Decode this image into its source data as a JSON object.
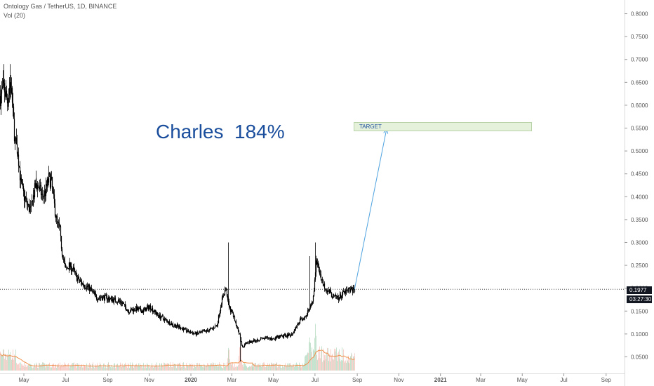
{
  "header": {
    "title": "Ontology Gas / TetherUS, 1D, BINANCE",
    "volume_label": "Vol (20)"
  },
  "annotation": {
    "text": "Charles  184%"
  },
  "target": {
    "label": "TARGET",
    "price_low": 0.543,
    "price_high": 0.563,
    "start_date": "2020-08-27",
    "end_date": "2021-05-15"
  },
  "projection_arrow": {
    "from": {
      "date": "2020-08-28",
      "price": 0.1977
    },
    "to": {
      "date": "2020-10-14",
      "price": 0.548
    }
  },
  "last_price": {
    "value": "0.1977",
    "countdown": "03:27:30"
  },
  "colors": {
    "annotation": "#1a4e9c",
    "candle": "#000000",
    "arrow": "#4fa3e0",
    "target_fill": "#e6f1dc",
    "target_border": "#b9d3a8",
    "volume_up": "#a8d5b5",
    "volume_down": "#f2b8b0",
    "volume_ma": "#f0904a",
    "axis_text": "#555555",
    "tag_bg": "#131722"
  },
  "chart_data": {
    "type": "candlestick",
    "x_axis": {
      "ticks": [
        "May",
        "Jul",
        "Sep",
        "Nov",
        "2020",
        "Mar",
        "May",
        "Jul",
        "Sep",
        "Nov",
        "2021",
        "Mar",
        "May",
        "Jul",
        "Sep"
      ],
      "tick_dates": [
        "2019-05-01",
        "2019-07-01",
        "2019-09-01",
        "2019-11-01",
        "2020-01-01",
        "2020-03-01",
        "2020-05-01",
        "2020-07-01",
        "2020-09-01",
        "2020-11-01",
        "2021-01-01",
        "2021-03-01",
        "2021-05-01",
        "2021-07-01",
        "2021-09-01"
      ],
      "bold_ticks": [
        "2020",
        "2021"
      ],
      "range": [
        "2019-03-27",
        "2021-09-28"
      ]
    },
    "y_axis": {
      "ticks": [
        0.05,
        0.1,
        0.15,
        0.2,
        0.25,
        0.3,
        0.35,
        0.4,
        0.45,
        0.5,
        0.55,
        0.6,
        0.65,
        0.7,
        0.75,
        0.8
      ],
      "tick_labels": [
        "0.0500",
        "0.1000",
        "0.1500",
        "0.2000",
        "0.2500",
        "0.3000",
        "0.3500",
        "0.4000",
        "0.4500",
        "0.5000",
        "0.5500",
        "0.6000",
        "0.6500",
        "0.7000",
        "0.7500",
        "0.8000"
      ],
      "range": [
        0.02,
        0.83
      ],
      "position": "right"
    },
    "grid": false,
    "series": [
      {
        "kind": "ohlc-daily-approx",
        "start_date": "2019-03-27",
        "end_date": "2020-08-28",
        "close_path": [
          [
            "2019-03-27",
            0.62
          ],
          [
            "2019-04-01",
            0.64
          ],
          [
            "2019-04-06",
            0.61
          ],
          [
            "2019-04-10",
            0.65
          ],
          [
            "2019-04-14",
            0.6
          ],
          [
            "2019-04-18",
            0.52
          ],
          [
            "2019-04-22",
            0.5
          ],
          [
            "2019-04-26",
            0.43
          ],
          [
            "2019-05-01",
            0.4
          ],
          [
            "2019-05-06",
            0.38
          ],
          [
            "2019-05-10",
            0.37
          ],
          [
            "2019-05-14",
            0.4
          ],
          [
            "2019-05-18",
            0.43
          ],
          [
            "2019-05-23",
            0.42
          ],
          [
            "2019-05-28",
            0.4
          ],
          [
            "2019-06-01",
            0.41
          ],
          [
            "2019-06-06",
            0.44
          ],
          [
            "2019-06-10",
            0.43
          ],
          [
            "2019-06-14",
            0.38
          ],
          [
            "2019-06-18",
            0.34
          ],
          [
            "2019-06-22",
            0.33
          ],
          [
            "2019-06-26",
            0.28
          ],
          [
            "2019-07-01",
            0.24
          ],
          [
            "2019-07-06",
            0.25
          ],
          [
            "2019-07-12",
            0.24
          ],
          [
            "2019-07-18",
            0.22
          ],
          [
            "2019-07-25",
            0.21
          ],
          [
            "2019-08-05",
            0.2
          ],
          [
            "2019-08-15",
            0.18
          ],
          [
            "2019-08-25",
            0.18
          ],
          [
            "2019-09-10",
            0.175
          ],
          [
            "2019-09-20",
            0.17
          ],
          [
            "2019-10-01",
            0.15
          ],
          [
            "2019-10-12",
            0.155
          ],
          [
            "2019-10-22",
            0.15
          ],
          [
            "2019-11-01",
            0.16
          ],
          [
            "2019-11-10",
            0.145
          ],
          [
            "2019-11-25",
            0.13
          ],
          [
            "2019-12-05",
            0.12
          ],
          [
            "2019-12-15",
            0.115
          ],
          [
            "2019-12-28",
            0.105
          ],
          [
            "2020-01-08",
            0.1
          ],
          [
            "2020-01-20",
            0.105
          ],
          [
            "2020-01-30",
            0.11
          ],
          [
            "2020-02-08",
            0.12
          ],
          [
            "2020-02-14",
            0.17
          ],
          [
            "2020-02-20",
            0.2
          ],
          [
            "2020-02-26",
            0.16
          ],
          [
            "2020-03-05",
            0.13
          ],
          [
            "2020-03-12",
            0.1
          ],
          [
            "2020-03-16",
            0.07
          ],
          [
            "2020-03-22",
            0.08
          ],
          [
            "2020-04-01",
            0.085
          ],
          [
            "2020-04-15",
            0.09
          ],
          [
            "2020-05-01",
            0.09
          ],
          [
            "2020-05-15",
            0.095
          ],
          [
            "2020-05-28",
            0.1
          ],
          [
            "2020-06-08",
            0.13
          ],
          [
            "2020-06-18",
            0.14
          ],
          [
            "2020-06-24",
            0.16
          ],
          [
            "2020-06-28",
            0.18
          ],
          [
            "2020-07-02",
            0.26
          ],
          [
            "2020-07-06",
            0.24
          ],
          [
            "2020-07-12",
            0.21
          ],
          [
            "2020-07-20",
            0.195
          ],
          [
            "2020-07-28",
            0.18
          ],
          [
            "2020-08-05",
            0.18
          ],
          [
            "2020-08-12",
            0.19
          ],
          [
            "2020-08-20",
            0.195
          ],
          [
            "2020-08-28",
            0.1977
          ]
        ],
        "notable_wicks": [
          [
            "2019-04-01",
            0.69
          ],
          [
            "2019-04-10",
            0.69
          ],
          [
            "2020-02-25",
            0.3
          ],
          [
            "2020-03-13",
            0.04
          ],
          [
            "2020-06-23",
            0.27
          ],
          [
            "2020-07-01",
            0.3
          ]
        ]
      },
      {
        "kind": "volume",
        "ma_period": 20,
        "relative_peaks": [
          [
            "2020-02-25",
            0.6
          ],
          [
            "2020-03-13",
            0.7
          ],
          [
            "2020-06-23",
            0.85
          ],
          [
            "2020-07-01",
            1.0
          ]
        ]
      }
    ]
  }
}
